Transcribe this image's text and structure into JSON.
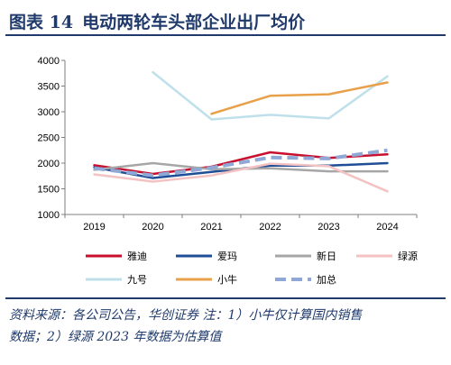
{
  "header": {
    "figure_label": "图表 14",
    "title": "电动两轮车头部企业出厂均价"
  },
  "footer": {
    "source_line1": "资料来源：各公司公告，华创证券 注：1）小牛仅计算国内销售",
    "source_line2": "数据；2）绿源 2023 年数据为估算值"
  },
  "chart_data": {
    "type": "line",
    "x": [
      "2019",
      "2020",
      "2021",
      "2022",
      "2023",
      "2024"
    ],
    "ylim": [
      1000,
      4000
    ],
    "yticks": [
      1000,
      1500,
      2000,
      2500,
      3000,
      3500,
      4000
    ],
    "grid": false,
    "legend_position": "bottom",
    "series": [
      {
        "name": "雅迪",
        "color": "#c8102e",
        "dash": false,
        "values": [
          1960,
          1790,
          1930,
          2210,
          2100,
          2170
        ]
      },
      {
        "name": "爱玛",
        "color": "#1f4e96",
        "dash": false,
        "values": [
          1920,
          1710,
          1830,
          1950,
          1950,
          2000
        ]
      },
      {
        "name": "新日",
        "color": "#a6a6a6",
        "dash": false,
        "values": [
          1870,
          2000,
          1880,
          1900,
          1840,
          1840
        ]
      },
      {
        "name": "绿源",
        "color": "#f4c2c2",
        "dash": false,
        "values": [
          1780,
          1640,
          1760,
          1990,
          1940,
          1450
        ]
      },
      {
        "name": "九号",
        "color": "#bfe0ea",
        "dash": false,
        "values": [
          null,
          3770,
          2850,
          2940,
          2870,
          3690
        ]
      },
      {
        "name": "小牛",
        "color": "#e8a04a",
        "dash": false,
        "values": [
          null,
          null,
          2960,
          3310,
          3340,
          3570
        ]
      },
      {
        "name": "加总",
        "color": "#8fa8d6",
        "dash": true,
        "values": [
          1900,
          1760,
          1910,
          2110,
          2090,
          2250
        ]
      }
    ]
  }
}
